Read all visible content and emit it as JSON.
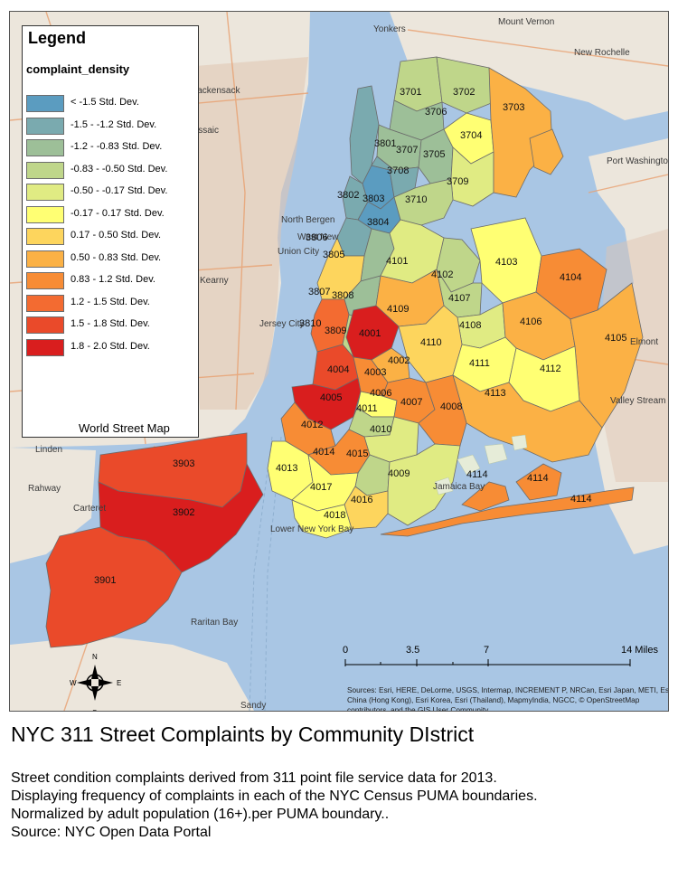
{
  "legend": {
    "title": "Legend",
    "field": "complaint_density",
    "classes": [
      {
        "label": "< -1.5 Std. Dev.",
        "color": "#5b9cc0"
      },
      {
        "label": "-1.5 - -1.2 Std. Dev.",
        "color": "#7aaaaf"
      },
      {
        "label": "-1.2 - -0.83 Std. Dev.",
        "color": "#9dbf98"
      },
      {
        "label": "-0.83 - -0.50 Std. Dev.",
        "color": "#bfd68a"
      },
      {
        "label": "-0.50 - -0.17 Std. Dev.",
        "color": "#e0eb83"
      },
      {
        "label": "-0.17 - 0.17 Std. Dev.",
        "color": "#ffff73"
      },
      {
        "label": "0.17 - 0.50 Std. Dev.",
        "color": "#fdd55d"
      },
      {
        "label": "0.50 - 0.83 Std. Dev.",
        "color": "#fbb145"
      },
      {
        "label": "0.83 - 1.2 Std. Dev.",
        "color": "#f78c35"
      },
      {
        "label": "1.2 - 1.5 Std. Dev.",
        "color": "#f36b31"
      },
      {
        "label": "1.5 - 1.8 Std. Dev.",
        "color": "#ea4a2a"
      },
      {
        "label": "1.8 - 2.0 Std. Dev.",
        "color": "#d91e1e"
      }
    ],
    "basemap_label": "World Street Map"
  },
  "pumas": [
    {
      "id": "3701",
      "class": 3
    },
    {
      "id": "3702",
      "class": 3
    },
    {
      "id": "3703",
      "class": 7
    },
    {
      "id": "3704",
      "class": 5
    },
    {
      "id": "3705",
      "class": 2
    },
    {
      "id": "3706",
      "class": 2
    },
    {
      "id": "3707",
      "class": 2
    },
    {
      "id": "3708",
      "class": 1
    },
    {
      "id": "3709",
      "class": 4
    },
    {
      "id": "3710",
      "class": 3
    },
    {
      "id": "3801",
      "class": 1
    },
    {
      "id": "3802",
      "class": 1
    },
    {
      "id": "3803",
      "class": 0
    },
    {
      "id": "3804",
      "class": 0
    },
    {
      "id": "3805",
      "class": 2
    },
    {
      "id": "3806",
      "class": 1
    },
    {
      "id": "3807",
      "class": 6
    },
    {
      "id": "3808",
      "class": 2
    },
    {
      "id": "3809",
      "class": 3
    },
    {
      "id": "3810",
      "class": 9
    },
    {
      "id": "3901",
      "class": 10
    },
    {
      "id": "3902",
      "class": 11
    },
    {
      "id": "3903",
      "class": 10
    },
    {
      "id": "4001",
      "class": 11
    },
    {
      "id": "4002",
      "class": 7
    },
    {
      "id": "4003",
      "class": 8
    },
    {
      "id": "4004",
      "class": 10
    },
    {
      "id": "4005",
      "class": 11
    },
    {
      "id": "4006",
      "class": 5
    },
    {
      "id": "4007",
      "class": 8
    },
    {
      "id": "4008",
      "class": 8
    },
    {
      "id": "4009",
      "class": 4
    },
    {
      "id": "4010",
      "class": 4
    },
    {
      "id": "4011",
      "class": 3
    },
    {
      "id": "4012",
      "class": 8
    },
    {
      "id": "4013",
      "class": 5
    },
    {
      "id": "4014",
      "class": 8
    },
    {
      "id": "4015",
      "class": 3
    },
    {
      "id": "4016",
      "class": 6
    },
    {
      "id": "4017",
      "class": 5
    },
    {
      "id": "4018",
      "class": 5
    },
    {
      "id": "4101",
      "class": 4
    },
    {
      "id": "4102",
      "class": 3
    },
    {
      "id": "4103",
      "class": 5
    },
    {
      "id": "4104",
      "class": 8
    },
    {
      "id": "4105",
      "class": 7
    },
    {
      "id": "4106",
      "class": 7
    },
    {
      "id": "4107",
      "class": 3
    },
    {
      "id": "4108",
      "class": 4
    },
    {
      "id": "4109",
      "class": 7
    },
    {
      "id": "4110",
      "class": 6
    },
    {
      "id": "4111",
      "class": 5
    },
    {
      "id": "4112",
      "class": 5
    },
    {
      "id": "4113",
      "class": 7
    },
    {
      "id": "4114",
      "class": 8
    }
  ],
  "basemap_places": [
    "Yonkers",
    "Mount Vernon",
    "New Rochelle",
    "Hackensack",
    "Port Washington",
    "Jersey City",
    "Elmont",
    "Valley Stream",
    "Linden",
    "Rahway",
    "Carteret",
    "Lower New York Bay",
    "Raritan Bay",
    "Sandy",
    "North Bergen",
    "Union City",
    "West New",
    "Jamaica Bay",
    "Passaic",
    "Kearny"
  ],
  "scale": {
    "ticks": [
      "0",
      "3.5",
      "7",
      "14 Miles"
    ]
  },
  "compass": {
    "n": "N",
    "s": "S",
    "e": "E",
    "w": "W"
  },
  "sources": "Sources: Esri, HERE, DeLorme, USGS, Intermap, INCREMENT P, NRCan, Esri Japan, METI, Esri China (Hong Kong), Esri Korea, Esri (Thailand), MapmyIndia, NGCC, © OpenStreetMap contributors, and the GIS User Community",
  "title": "NYC 311 Street Complaints by Community DIstrict",
  "description": [
    "Street condition complaints derived from 311 point file service data for 2013.",
    "Displaying frequency of complaints in each of the NYC Census PUMA boundaries.",
    "Normalized by adult population (16+).per PUMA boundary..",
    "Source: NYC Open Data Portal"
  ]
}
